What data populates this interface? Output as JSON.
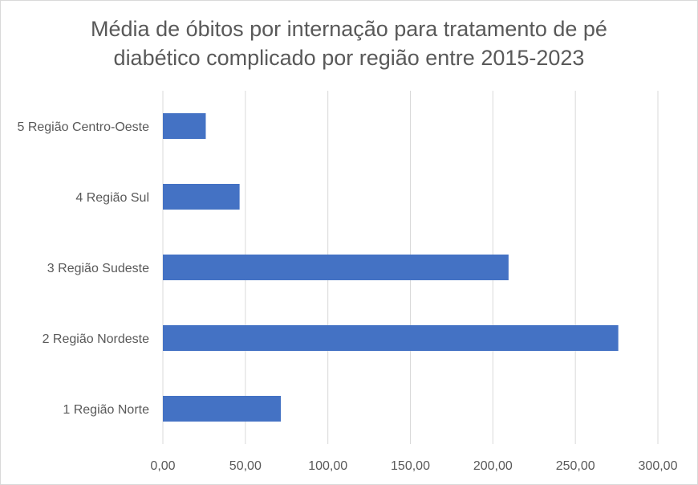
{
  "chart_data": {
    "type": "bar",
    "orientation": "horizontal",
    "title_lines": [
      "Média de óbitos por internação para tratamento de pé",
      "diabético complicado por região entre 2015-2023"
    ],
    "categories": [
      "5 Região Centro-Oeste",
      "4 Região Sul",
      "3 Região Sudeste",
      "2 Região Nordeste",
      "1 Região Norte"
    ],
    "values": [
      26,
      46.5,
      209.5,
      276,
      71.5
    ],
    "xlim": [
      0,
      300
    ],
    "x_ticks": [
      0,
      50,
      100,
      150,
      200,
      250,
      300
    ],
    "x_tick_labels": [
      "0,00",
      "50,00",
      "100,00",
      "150,00",
      "200,00",
      "250,00",
      "300,00"
    ],
    "grid": "vertical",
    "legend": "none",
    "bar_color": "#4472c4",
    "grid_color": "#d9d9d9",
    "text_color": "#595959"
  }
}
